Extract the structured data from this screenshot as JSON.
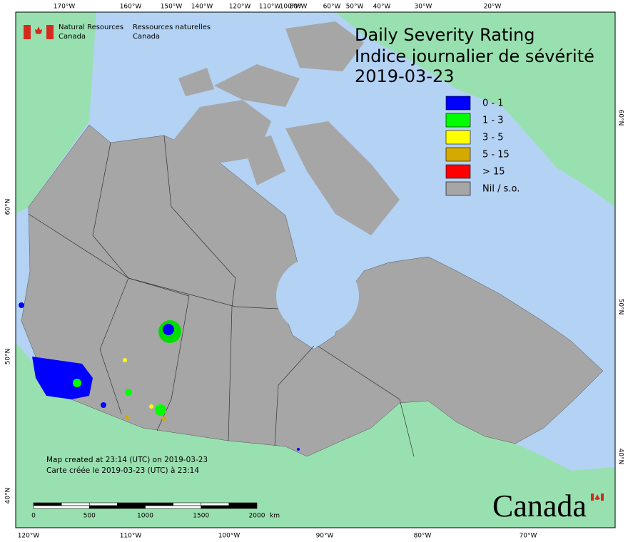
{
  "agency": {
    "en_line1": "Natural Resources",
    "en_line2": "Canada",
    "fr_line1": "Ressources naturelles",
    "fr_line2": "Canada"
  },
  "title": {
    "line1": "Daily Severity Rating",
    "line2": "Indice journalier de sévérité",
    "date": "2019-03-23"
  },
  "legend": [
    {
      "label": "0 - 1",
      "color": "#0000ff"
    },
    {
      "label": "1 - 3",
      "color": "#00ff00"
    },
    {
      "label": "3 - 5",
      "color": "#ffff00"
    },
    {
      "label": "5 - 15",
      "color": "#d4aa00"
    },
    {
      "label": "> 15",
      "color": "#ff0000"
    },
    {
      "label": "Nil / s.o.",
      "color": "#a6a6a6"
    }
  ],
  "graticule": {
    "top": [
      "170°W",
      "160°W",
      "150°W",
      "140°W",
      "120°W",
      "110°W",
      "100°W",
      "80°W",
      "60°W",
      "50°W",
      "40°W",
      "30°W",
      "20°W"
    ],
    "bottom": [
      "120°W",
      "110°W",
      "100°W",
      "90°W",
      "80°W",
      "70°W"
    ],
    "left": [
      "60°N",
      "50°N",
      "40°N"
    ],
    "right": [
      "60°N",
      "50°N",
      "40°N"
    ]
  },
  "credits": {
    "en": "Map created at 23:14 (UTC) on 2019-03-23",
    "fr": "Carte créée le 2019-03-23 (UTC) à 23:14"
  },
  "scale_bar": {
    "labels": [
      "0",
      "500",
      "1000",
      "1500",
      "2000"
    ],
    "unit": "km"
  },
  "wordmark": "Canada"
}
